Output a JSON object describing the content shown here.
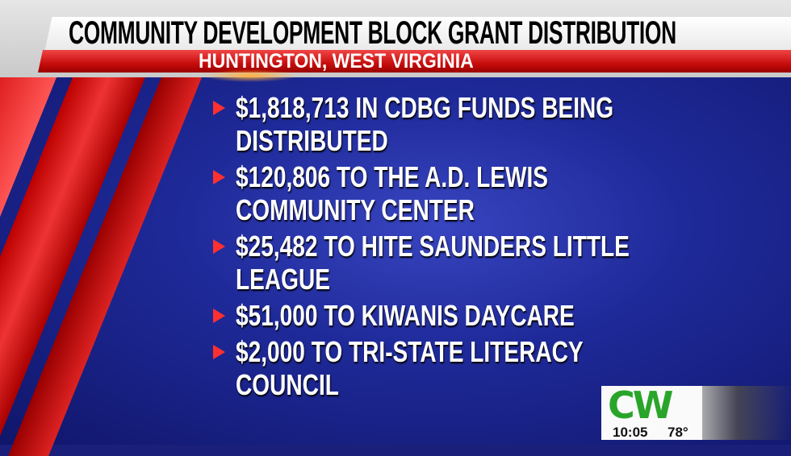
{
  "header": {
    "title": "COMMUNITY DEVELOPMENT BLOCK GRANT DISTRIBUTION",
    "subtitle": "HUNTINGTON, WEST VIRGINIA"
  },
  "bullets": [
    {
      "lines": [
        "$1,818,713 IN CDBG FUNDS BEING",
        "DISTRIBUTED"
      ]
    },
    {
      "lines": [
        "$120,806 TO THE A.D. LEWIS",
        "COMMUNITY CENTER"
      ]
    },
    {
      "lines": [
        "$25,482 TO HITE SAUNDERS LITTLE",
        "LEAGUE"
      ]
    },
    {
      "lines": [
        "$51,000 TO KIWANIS DAYCARE"
      ]
    },
    {
      "lines": [
        "$2,000 TO TRI-STATE LITERACY",
        "COUNCIL"
      ]
    }
  ],
  "bug": {
    "logo": "CW",
    "time": "10:05",
    "temperature": "78°"
  },
  "colors": {
    "accent_red": "#d01010",
    "background_blue": "#1f2a9a",
    "logo_green": "#2aa52a"
  }
}
